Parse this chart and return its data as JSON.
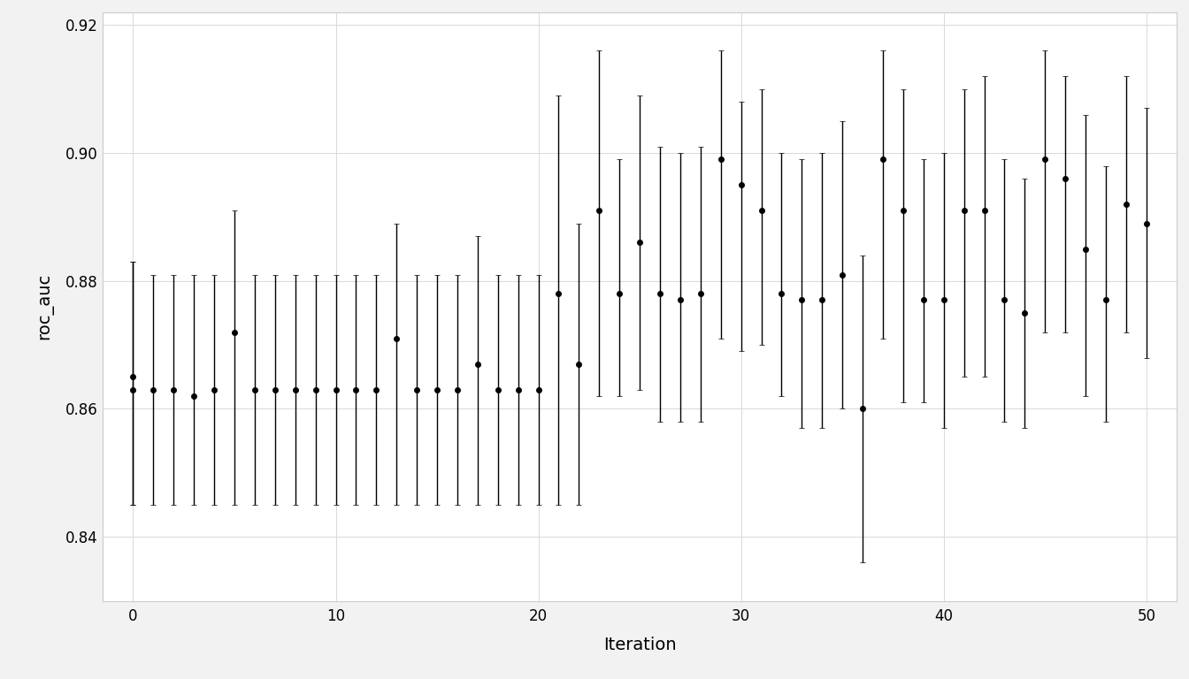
{
  "iterations": [
    0,
    0,
    1,
    2,
    3,
    4,
    5,
    6,
    7,
    8,
    9,
    10,
    11,
    12,
    13,
    14,
    15,
    16,
    17,
    18,
    19,
    20,
    21,
    22,
    23,
    24,
    25,
    26,
    27,
    28,
    29,
    30,
    31,
    32,
    33,
    34,
    35,
    36,
    37,
    38,
    39,
    40,
    41,
    42,
    43,
    44,
    45,
    46,
    47,
    48,
    49,
    50
  ],
  "mean": [
    0.865,
    0.863,
    0.863,
    0.863,
    0.862,
    0.863,
    0.872,
    0.863,
    0.863,
    0.863,
    0.863,
    0.863,
    0.863,
    0.863,
    0.871,
    0.863,
    0.863,
    0.863,
    0.867,
    0.863,
    0.863,
    0.863,
    0.878,
    0.867,
    0.891,
    0.878,
    0.886,
    0.878,
    0.877,
    0.878,
    0.899,
    0.895,
    0.891,
    0.878,
    0.877,
    0.877,
    0.881,
    0.86,
    0.899,
    0.891,
    0.877,
    0.877,
    0.891,
    0.891,
    0.877,
    0.875,
    0.899,
    0.896,
    0.885,
    0.877,
    0.892,
    0.889
  ],
  "lower": [
    0.845,
    0.845,
    0.845,
    0.845,
    0.845,
    0.845,
    0.845,
    0.845,
    0.845,
    0.845,
    0.845,
    0.845,
    0.845,
    0.845,
    0.845,
    0.845,
    0.845,
    0.845,
    0.845,
    0.845,
    0.845,
    0.845,
    0.845,
    0.845,
    0.862,
    0.862,
    0.863,
    0.858,
    0.858,
    0.858,
    0.871,
    0.869,
    0.87,
    0.862,
    0.857,
    0.857,
    0.86,
    0.836,
    0.871,
    0.861,
    0.861,
    0.857,
    0.865,
    0.865,
    0.858,
    0.857,
    0.872,
    0.872,
    0.862,
    0.858,
    0.872,
    0.868
  ],
  "upper": [
    0.883,
    0.883,
    0.881,
    0.881,
    0.881,
    0.881,
    0.891,
    0.881,
    0.881,
    0.881,
    0.881,
    0.881,
    0.881,
    0.881,
    0.889,
    0.881,
    0.881,
    0.881,
    0.887,
    0.881,
    0.881,
    0.881,
    0.909,
    0.889,
    0.916,
    0.899,
    0.909,
    0.901,
    0.9,
    0.901,
    0.916,
    0.908,
    0.91,
    0.9,
    0.899,
    0.9,
    0.905,
    0.884,
    0.916,
    0.91,
    0.899,
    0.9,
    0.91,
    0.912,
    0.899,
    0.896,
    0.916,
    0.912,
    0.906,
    0.898,
    0.912,
    0.907
  ],
  "background_color": "#f2f2f2",
  "panel_color": "#ffffff",
  "point_color": "#000000",
  "line_color": "#000000",
  "grid_color": "#d9d9d9",
  "border_color": "#cccccc",
  "xlabel": "Iteration",
  "ylabel": "roc_auc",
  "ylim": [
    0.83,
    0.922
  ],
  "xlim": [
    -1.5,
    51.5
  ],
  "yticks": [
    0.84,
    0.86,
    0.88,
    0.9,
    0.92
  ],
  "xticks": [
    0,
    10,
    20,
    30,
    40,
    50
  ],
  "point_size": 4.5,
  "capsize": 2.5,
  "linewidth": 1.0,
  "xlabel_fontsize": 14,
  "ylabel_fontsize": 14,
  "tick_fontsize": 12
}
